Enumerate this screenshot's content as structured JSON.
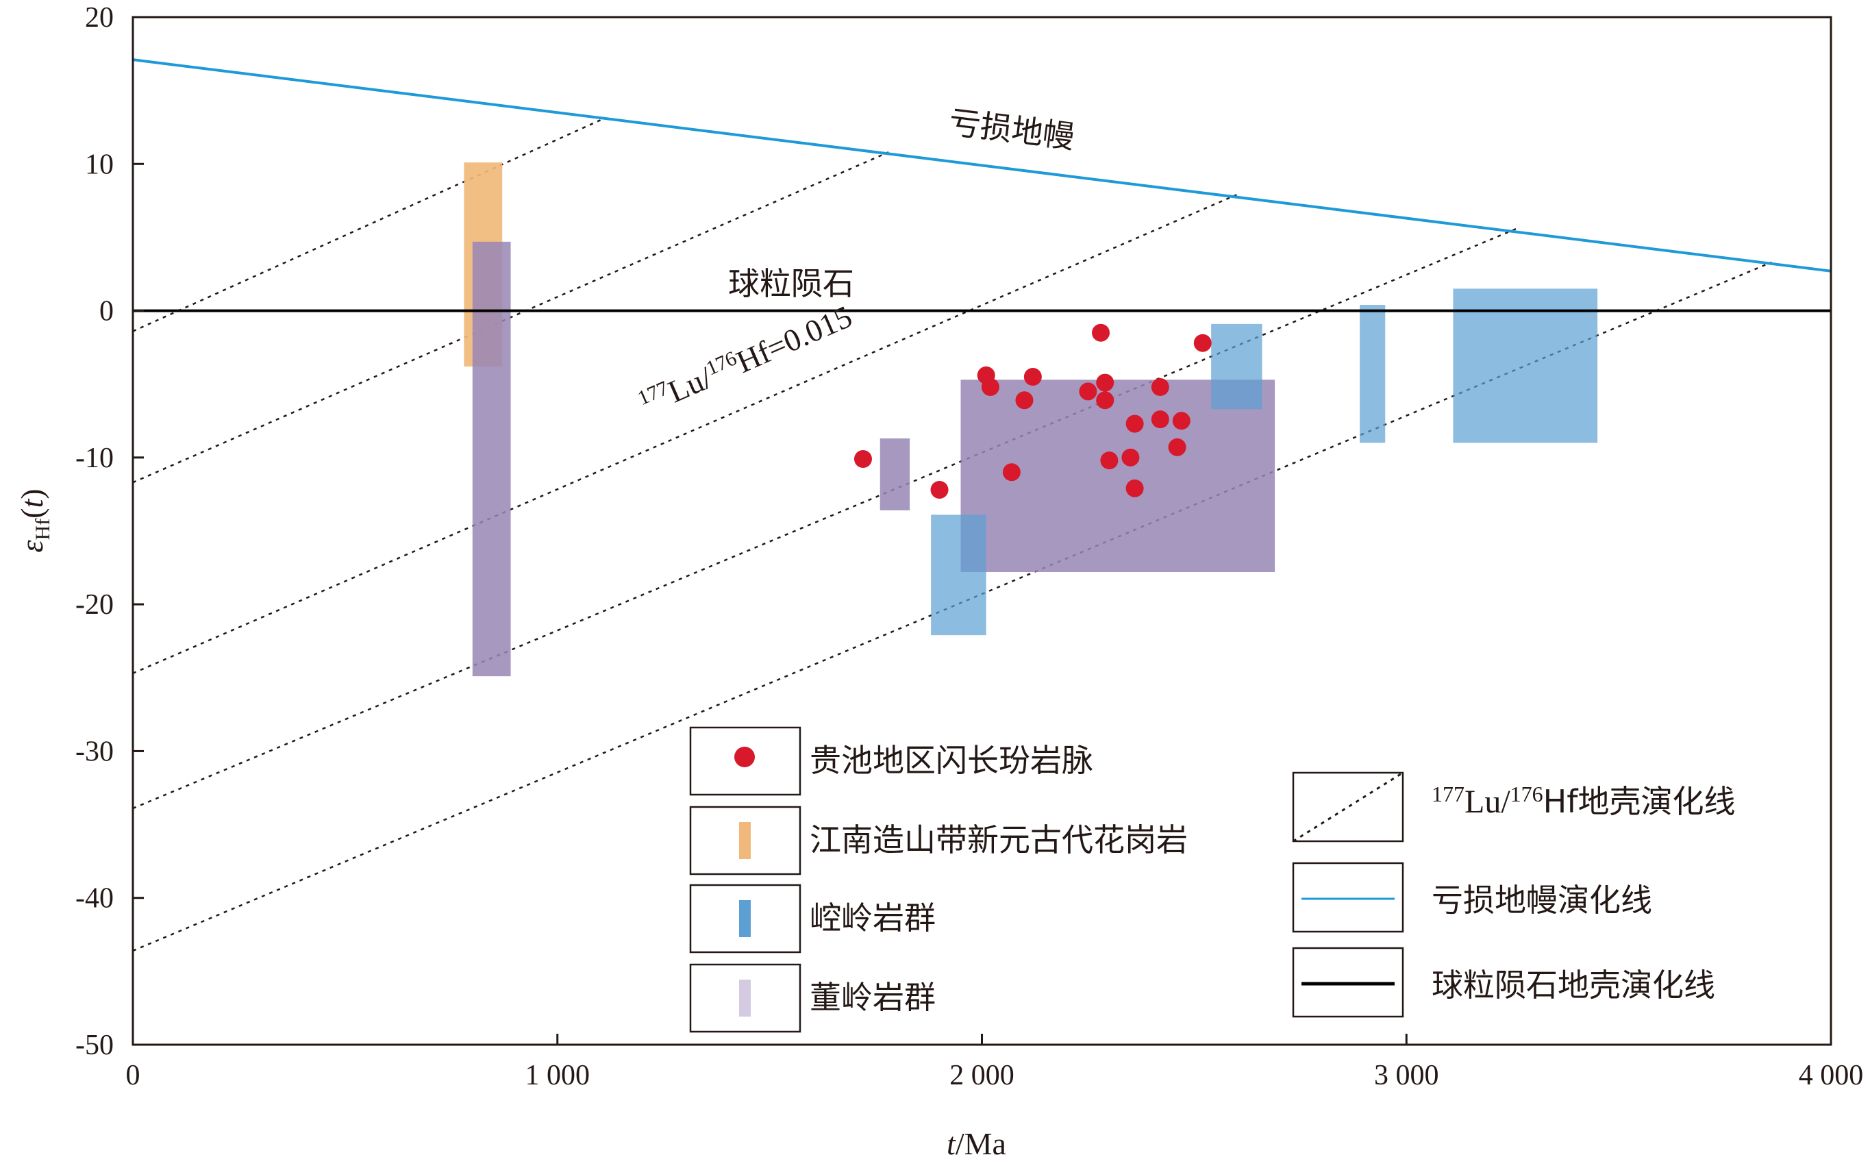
{
  "chart_data": {
    "type": "scatter",
    "xlabel": {
      "italic": "t",
      "rest": "/Ma"
    },
    "ylabel": {
      "epsilon": "ε",
      "sub": "Hf",
      "paren": "(t)"
    },
    "xlim": [
      0,
      4000
    ],
    "ylim": [
      -50,
      20
    ],
    "xticks": [
      {
        "value": 0,
        "label": "0"
      },
      {
        "value": 1000,
        "label": "1 000"
      },
      {
        "value": 2000,
        "label": "2 000"
      },
      {
        "value": 3000,
        "label": "3 000"
      },
      {
        "value": 4000,
        "label": "4 000"
      }
    ],
    "yticks": [
      {
        "value": 20,
        "label": "20"
      },
      {
        "value": 10,
        "label": "10"
      },
      {
        "value": 0,
        "label": "0"
      },
      {
        "value": -10,
        "label": "-10"
      },
      {
        "value": -20,
        "label": "-20"
      },
      {
        "value": -30,
        "label": "-30"
      },
      {
        "value": -40,
        "label": "-40"
      },
      {
        "value": -50,
        "label": "-50"
      }
    ],
    "grid": false,
    "depleted_mantle": {
      "label": "亏损地幔",
      "color": "#1e9ad6",
      "points": [
        [
          0,
          17.1
        ],
        [
          4000,
          2.7
        ]
      ]
    },
    "chondrite": {
      "label": "球粒陨石",
      "color": "#000000",
      "points": [
        [
          0,
          0
        ],
        [
          4000,
          0
        ]
      ]
    },
    "crust_lines": {
      "annotation_sup1": "177",
      "annotation_mid": "Lu/",
      "annotation_sup2": "176",
      "annotation_end": "Hf=0.015",
      "color": "#231815",
      "lines": [
        [
          [
            0,
            -1.4
          ],
          [
            1110,
            13.1
          ]
        ],
        [
          [
            0,
            -11.7
          ],
          [
            1780,
            10.8
          ]
        ],
        [
          [
            0,
            -24.7
          ],
          [
            2600,
            7.9
          ]
        ],
        [
          [
            0,
            -33.9
          ],
          [
            3260,
            5.6
          ]
        ],
        [
          [
            0,
            -43.6
          ],
          [
            3860,
            3.3
          ]
        ]
      ]
    },
    "ranges": [
      {
        "group": "jiangnan",
        "color": "#f0b87a",
        "opacity": 0.92,
        "x": [
          780,
          870
        ],
        "y": [
          -3.8,
          10.1
        ]
      },
      {
        "group": "dongling",
        "color": "#9886b5",
        "opacity": 0.85,
        "x": [
          800,
          890
        ],
        "y": [
          -24.9,
          4.7
        ]
      },
      {
        "group": "dongling",
        "color": "#9886b5",
        "opacity": 0.85,
        "x": [
          1760,
          1830
        ],
        "y": [
          -13.6,
          -8.7
        ]
      },
      {
        "group": "dongling",
        "color": "#9886b5",
        "opacity": 0.85,
        "x": [
          1950,
          2690
        ],
        "y": [
          -17.8,
          -4.7
        ]
      },
      {
        "group": "kongling",
        "color": "#5b9fd3",
        "opacity": 0.7,
        "x": [
          1880,
          2010
        ],
        "y": [
          -22.1,
          -13.9
        ]
      },
      {
        "group": "kongling",
        "color": "#5b9fd3",
        "opacity": 0.7,
        "x": [
          2540,
          2660
        ],
        "y": [
          -6.7,
          -0.9
        ]
      },
      {
        "group": "kongling",
        "color": "#5b9fd3",
        "opacity": 0.7,
        "x": [
          2890,
          2950
        ],
        "y": [
          -9.0,
          0.4
        ]
      },
      {
        "group": "kongling",
        "color": "#5b9fd3",
        "opacity": 0.7,
        "x": [
          3110,
          3450
        ],
        "y": [
          -9.0,
          1.5
        ]
      }
    ],
    "series": [
      {
        "name": "贵池地区闪长玢岩脉",
        "color": "#d7192b",
        "points": [
          [
            1720,
            -10.1
          ],
          [
            1900,
            -12.2
          ],
          [
            2010,
            -4.4
          ],
          [
            2020,
            -5.2
          ],
          [
            2070,
            -11.0
          ],
          [
            2100,
            -6.1
          ],
          [
            2120,
            -4.5
          ],
          [
            2250,
            -5.5
          ],
          [
            2280,
            -1.5
          ],
          [
            2290,
            -4.9
          ],
          [
            2290,
            -6.1
          ],
          [
            2300,
            -10.2
          ],
          [
            2350,
            -10.0
          ],
          [
            2360,
            -12.1
          ],
          [
            2360,
            -7.7
          ],
          [
            2420,
            -5.2
          ],
          [
            2420,
            -7.4
          ],
          [
            2460,
            -9.3
          ],
          [
            2470,
            -7.5
          ],
          [
            2520,
            -2.2
          ]
        ]
      }
    ],
    "legend_left": [
      {
        "kind": "dot",
        "label": "贵池地区闪长玢岩脉",
        "color": "#d7192b"
      },
      {
        "kind": "bar",
        "label": "江南造山带新元古代花岗岩",
        "color": "#f0b87a"
      },
      {
        "kind": "bar",
        "label": "崆岭岩群",
        "color": "#5b9fd3"
      },
      {
        "kind": "bar",
        "label": "董岭岩群",
        "color": "#d4cbe2"
      }
    ],
    "legend_right": [
      {
        "kind": "dashed",
        "sup1": "177",
        "mid": "Lu/",
        "sup2": "176",
        "label": "Hf地壳演化线",
        "color": "#231815"
      },
      {
        "kind": "line",
        "label": "亏损地幔演化线",
        "color": "#1e9ad6"
      },
      {
        "kind": "line",
        "label": "球粒陨石地壳演化线",
        "color": "#000000"
      }
    ]
  }
}
